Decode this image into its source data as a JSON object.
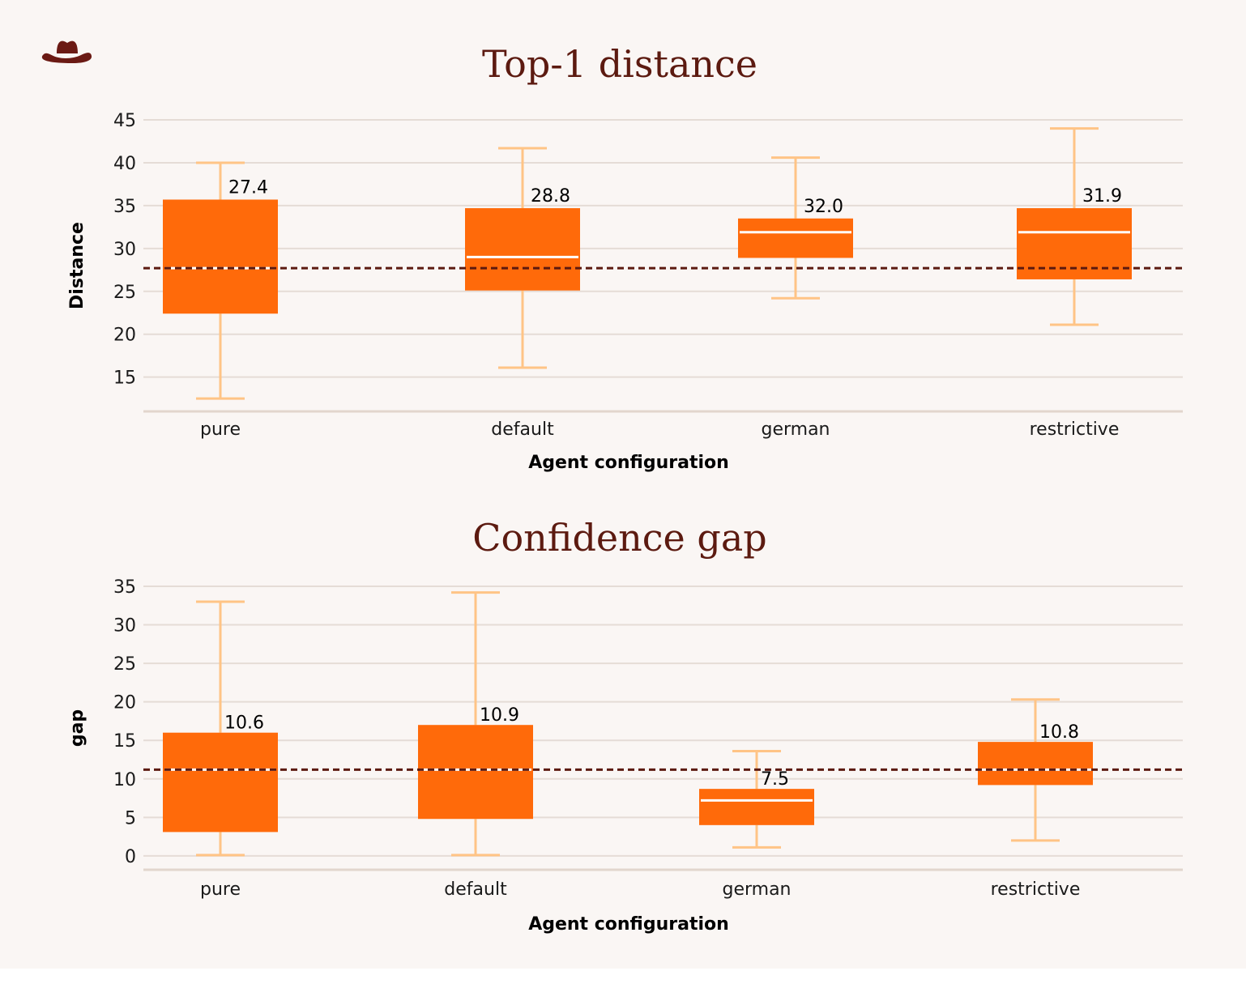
{
  "logo": {
    "icon": "cowboy-hat-icon",
    "color": "#6b1a14"
  },
  "colors": {
    "box": "#ff6a0a",
    "whisker": "#ffc486",
    "median": "#ffffff",
    "reference_line": "#5c1a10",
    "grid": "#e5dcd6",
    "title": "#5c1a10"
  },
  "chart_data": [
    {
      "type": "box",
      "title": "Top-1 distance",
      "xlabel": "Agent configuration",
      "ylabel": "Distance",
      "yticks": [
        15,
        20,
        25,
        30,
        35,
        40,
        45
      ],
      "ylim": [
        11,
        45
      ],
      "grid": true,
      "reference_line": 27.7,
      "categories": [
        "pure",
        "default",
        "german",
        "restrictive"
      ],
      "boxes": [
        {
          "category": "pure",
          "whisker_low": 12.5,
          "q1": 22.4,
          "median": 27.7,
          "q3": 35.7,
          "whisker_high": 40,
          "label": "27.4"
        },
        {
          "category": "default",
          "whisker_low": 16.1,
          "q1": 25.1,
          "median": 29.0,
          "q3": 34.7,
          "whisker_high": 41.7,
          "label": "28.8"
        },
        {
          "category": "german",
          "whisker_low": 24.2,
          "q1": 28.9,
          "median": 31.9,
          "q3": 33.5,
          "whisker_high": 40.6,
          "label": "32.0"
        },
        {
          "category": "restrictive",
          "whisker_low": 21.1,
          "q1": 26.4,
          "median": 31.9,
          "q3": 34.7,
          "whisker_high": 44.0,
          "label": "31.9"
        }
      ]
    },
    {
      "type": "box",
      "title": "Confidence gap",
      "xlabel": "Agent configuration",
      "ylabel": "gap",
      "yticks": [
        0,
        5,
        10,
        15,
        20,
        25,
        30,
        35
      ],
      "ylim": [
        -1.8,
        35
      ],
      "grid": true,
      "reference_line": 11.2,
      "categories": [
        "pure",
        "default",
        "german",
        "restrictive"
      ],
      "boxes": [
        {
          "category": "pure",
          "whisker_low": 0.1,
          "q1": 3.1,
          "median": 11.2,
          "q3": 16.0,
          "whisker_high": 33.0,
          "label": "10.6"
        },
        {
          "category": "default",
          "whisker_low": 0.1,
          "q1": 4.8,
          "median": 11.2,
          "q3": 17.0,
          "whisker_high": 34.2,
          "label": "10.9"
        },
        {
          "category": "german",
          "whisker_low": 1.1,
          "q1": 4.0,
          "median": 7.2,
          "q3": 8.7,
          "whisker_high": 13.6,
          "label": "7.5"
        },
        {
          "category": "restrictive",
          "whisker_low": 2.0,
          "q1": 9.2,
          "median": 11.2,
          "q3": 14.8,
          "whisker_high": 20.3,
          "label": "10.8"
        }
      ]
    }
  ]
}
